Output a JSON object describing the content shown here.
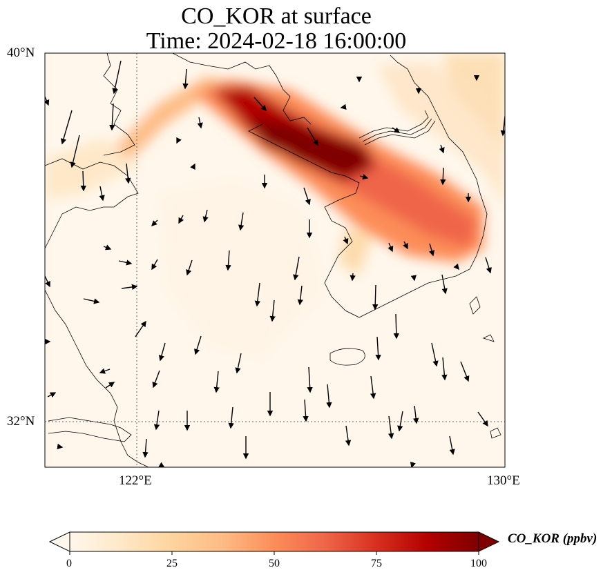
{
  "figure": {
    "title_line1": "CO_KOR at surface",
    "title_line2": "Time: 2024-02-18 16:00:00"
  },
  "map": {
    "lon_range": [
      120,
      130
    ],
    "lat_range": [
      31,
      40
    ],
    "lon_ticks": [
      "122°E",
      "130°E"
    ],
    "lat_ticks": [
      "40°N",
      "32°N"
    ],
    "gridlines": "dotted"
  },
  "colorbar": {
    "label": "CO_KOR (ppbv)",
    "colormap": "OrRd",
    "min": 0,
    "max": 100,
    "extend": "both",
    "tick_labels": [
      "0",
      "25",
      "50",
      "75",
      "100"
    ],
    "colors": [
      "#fff7ec",
      "#fee8c8",
      "#fdd49e",
      "#fdbb84",
      "#fc8d59",
      "#ef6548",
      "#d7301f",
      "#b30000",
      "#7f0000"
    ]
  }
}
